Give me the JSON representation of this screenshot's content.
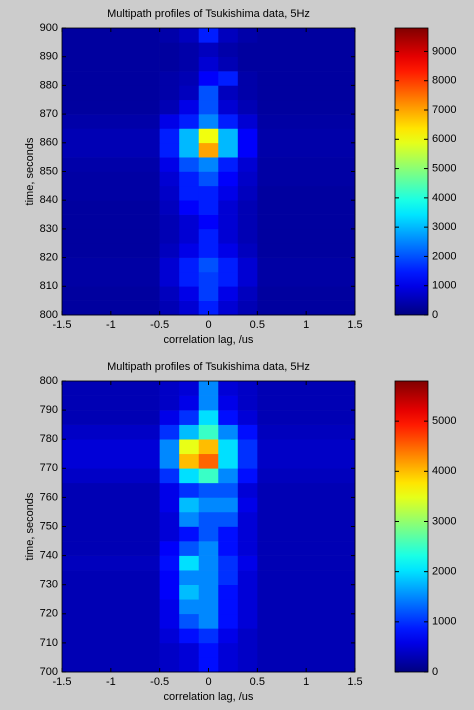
{
  "chart_data": [
    {
      "type": "heatmap",
      "title": "Multipath profiles of Tsukishima data, 5Hz",
      "xlabel": "correlation lag, /us",
      "ylabel": "time, seconds",
      "colormap": "jet",
      "xlim": [
        -1.5,
        1.5
      ],
      "xticks": [
        -1.5,
        -1,
        -0.5,
        0,
        0.5,
        1,
        1.5
      ],
      "ylim": [
        800,
        900
      ],
      "yticks": [
        800,
        810,
        820,
        830,
        840,
        850,
        860,
        870,
        880,
        890,
        900
      ],
      "clim": [
        0,
        9800
      ],
      "cticks": [
        0,
        1000,
        2000,
        3000,
        4000,
        5000,
        6000,
        7000,
        8000,
        9000
      ],
      "x_edges": [
        -1.5,
        -0.5,
        -0.3,
        -0.1,
        0.1,
        0.3,
        0.5,
        1.5
      ],
      "y_edges": [
        800,
        805,
        810,
        815,
        820,
        825,
        830,
        835,
        840,
        845,
        850,
        855,
        860,
        865,
        870,
        875,
        880,
        885,
        890,
        895,
        900
      ],
      "values": [
        [
          300,
          500,
          800,
          1500,
          800,
          500,
          300
        ],
        [
          300,
          600,
          1000,
          1800,
          1000,
          600,
          300
        ],
        [
          350,
          800,
          1500,
          1800,
          1500,
          800,
          350
        ],
        [
          350,
          800,
          1500,
          2000,
          1500,
          800,
          350
        ],
        [
          300,
          600,
          1000,
          1500,
          1000,
          600,
          300
        ],
        [
          300,
          500,
          800,
          1500,
          800,
          500,
          300
        ],
        [
          300,
          500,
          800,
          1200,
          800,
          500,
          300
        ],
        [
          300,
          600,
          1200,
          1500,
          800,
          500,
          300
        ],
        [
          350,
          700,
          1500,
          1500,
          1000,
          600,
          300
        ],
        [
          350,
          800,
          1500,
          2000,
          1200,
          700,
          350
        ],
        [
          400,
          1000,
          2000,
          2500,
          1500,
          800,
          350
        ],
        [
          500,
          1500,
          3000,
          7000,
          3000,
          1200,
          400
        ],
        [
          500,
          1500,
          3000,
          6000,
          3000,
          1200,
          400
        ],
        [
          400,
          1000,
          1500,
          2500,
          1500,
          800,
          350
        ],
        [
          300,
          500,
          1000,
          2000,
          800,
          500,
          300
        ],
        [
          300,
          400,
          600,
          2000,
          600,
          400,
          300
        ],
        [
          300,
          400,
          500,
          1200,
          1500,
          400,
          300
        ],
        [
          300,
          300,
          400,
          800,
          500,
          300,
          300
        ],
        [
          300,
          300,
          400,
          600,
          400,
          300,
          300
        ],
        [
          300,
          400,
          600,
          1500,
          600,
          400,
          300
        ]
      ]
    },
    {
      "type": "heatmap",
      "title": "Multipath profiles of Tsukishima data, 5Hz",
      "xlabel": "correlation lag, /us",
      "ylabel": "time, seconds",
      "colormap": "jet",
      "xlim": [
        -1.5,
        1.5
      ],
      "xticks": [
        -1.5,
        -1,
        -0.5,
        0,
        0.5,
        1,
        1.5
      ],
      "ylim": [
        700,
        800
      ],
      "yticks": [
        700,
        710,
        720,
        730,
        740,
        750,
        760,
        770,
        780,
        790,
        800
      ],
      "clim": [
        0,
        5800
      ],
      "cticks": [
        0,
        1000,
        2000,
        3000,
        4000,
        5000
      ],
      "x_edges": [
        -1.5,
        -0.5,
        -0.3,
        -0.1,
        0.1,
        0.3,
        0.5,
        1.5
      ],
      "y_edges": [
        700,
        705,
        710,
        715,
        720,
        725,
        730,
        735,
        740,
        745,
        750,
        755,
        760,
        765,
        770,
        775,
        780,
        785,
        790,
        795,
        800
      ],
      "values": [
        [
          300,
          400,
          500,
          800,
          500,
          400,
          300
        ],
        [
          300,
          400,
          500,
          800,
          500,
          400,
          300
        ],
        [
          300,
          500,
          800,
          1000,
          600,
          400,
          300
        ],
        [
          300,
          600,
          1200,
          1500,
          800,
          500,
          300
        ],
        [
          300,
          600,
          1500,
          1500,
          800,
          500,
          300
        ],
        [
          300,
          700,
          1800,
          1500,
          800,
          500,
          300
        ],
        [
          300,
          700,
          1500,
          1500,
          1000,
          500,
          300
        ],
        [
          350,
          800,
          2000,
          1500,
          1000,
          600,
          300
        ],
        [
          300,
          700,
          1200,
          1500,
          800,
          500,
          300
        ],
        [
          300,
          500,
          800,
          1200,
          800,
          500,
          300
        ],
        [
          300,
          500,
          1500,
          1200,
          1200,
          500,
          300
        ],
        [
          300,
          600,
          1800,
          1500,
          1500,
          600,
          300
        ],
        [
          300,
          600,
          1000,
          1200,
          1200,
          500,
          300
        ],
        [
          400,
          1000,
          2000,
          2500,
          1500,
          800,
          350
        ],
        [
          500,
          1500,
          4000,
          4500,
          2000,
          1000,
          400
        ],
        [
          500,
          1500,
          3500,
          4000,
          2000,
          1000,
          400
        ],
        [
          400,
          1000,
          1800,
          2500,
          1500,
          800,
          350
        ],
        [
          300,
          600,
          1000,
          2000,
          800,
          500,
          300
        ],
        [
          300,
          400,
          600,
          1500,
          600,
          400,
          300
        ],
        [
          300,
          400,
          500,
          1500,
          500,
          400,
          300
        ]
      ]
    }
  ]
}
